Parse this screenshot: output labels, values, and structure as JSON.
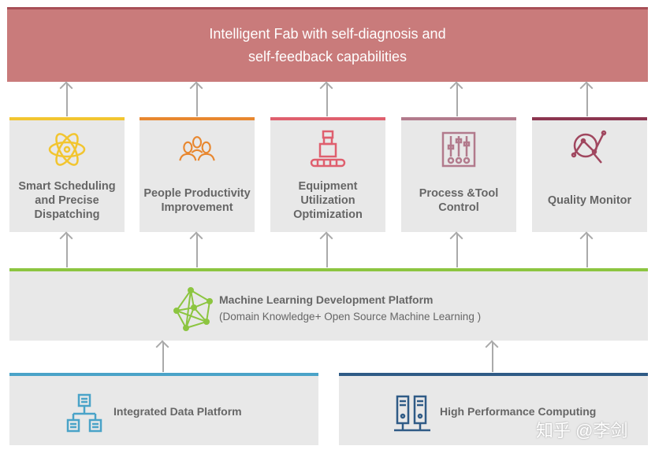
{
  "banner": {
    "line1": "Intelligent Fab with self-diagnosis and",
    "line2": "self-feedback capabilities"
  },
  "cards": [
    {
      "label": "Smart Scheduling and Precise Dispatching",
      "icon": "atom-icon",
      "color": "#f2c530"
    },
    {
      "label": "People Productivity Improvement",
      "icon": "people-icon",
      "color": "#e8872f"
    },
    {
      "label": "Equipment Utilization Optimization",
      "icon": "robot-conveyor-icon",
      "color": "#df5f6e"
    },
    {
      "label": "Process &Tool Control",
      "icon": "sliders-icon",
      "color": "#b27a8c"
    },
    {
      "label": "Quality Monitor",
      "icon": "magnifier-chart-icon",
      "color": "#8c3650"
    }
  ],
  "ml": {
    "title": "Machine Learning Development Platform",
    "subtitle": "(Domain Knowledge+ Open Source Machine Learning )",
    "icon": "network-icon",
    "color": "#8cc540"
  },
  "bottom": [
    {
      "label": "Integrated Data Platform",
      "icon": "hierarchy-icon",
      "color": "#4aa3c8"
    },
    {
      "label": "High Performance Computing",
      "icon": "servers-icon",
      "color": "#2f5b86"
    }
  ],
  "watermark": "知乎 @李剑"
}
